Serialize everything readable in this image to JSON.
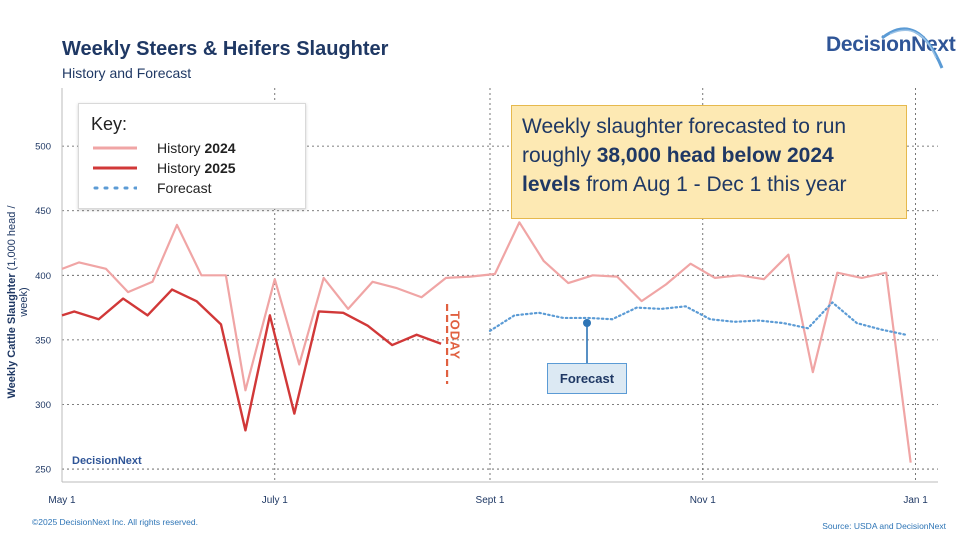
{
  "title": "Weekly Steers & Heifers Slaughter",
  "subtitle": "History and Forecast",
  "logo": "DecisionNext",
  "footer_left": "©2025 DecisionNext Inc. All rights reserved.",
  "footer_right": "Source: USDA and DecisionNext",
  "callout": {
    "text_start": "Weekly slaughter forecasted to run roughly ",
    "text_bold": "38,000 head below 2024 levels",
    "text_end": " from Aug 1 - Dec 1 this year"
  },
  "legend": {
    "title": "Key:",
    "items": [
      {
        "label": "History ",
        "bold": "2024",
        "style": "solid-light"
      },
      {
        "label": "History ",
        "bold": "2025",
        "style": "solid-dark"
      },
      {
        "label": "Forecast",
        "bold": "",
        "style": "dotted"
      }
    ]
  },
  "annotations": {
    "today": "TODAY",
    "forecast_label": "Forecast"
  },
  "colors": {
    "history_2024": "#f0a5a5",
    "history_2025": "#d13838",
    "forecast": "#5b9bd5",
    "today": "#e06040"
  },
  "chart_data": {
    "type": "line",
    "title": "Weekly Steers & Heifers Slaughter",
    "subtitle": "History and Forecast",
    "xlabel": "",
    "ylabel": "Weekly Cattle Slaughter",
    "ylabel_unit": "(1,000 head / week)",
    "ylim": [
      240,
      545
    ],
    "x_domain": [
      0,
      35
    ],
    "x_ticks": [
      {
        "label": "May 1",
        "x": 0
      },
      {
        "label": "July 1",
        "x": 8.7
      },
      {
        "label": "Sept 1",
        "x": 17.5
      },
      {
        "label": "Nov 1",
        "x": 26.2
      },
      {
        "label": "Jan 1",
        "x": 34.9
      }
    ],
    "y_ticks": [
      250,
      300,
      350,
      400,
      450,
      500
    ],
    "today_x": 15.5,
    "series": [
      {
        "name": "History 2024",
        "style": "solid-light",
        "x": [
          0,
          0.7,
          1.8,
          2.7,
          3.7,
          4.7,
          5.7,
          6.7,
          7.5,
          8.7,
          9.7,
          10.7,
          11.7,
          12.7,
          13.7,
          14.7,
          15.7,
          16.7,
          17.7,
          18.7,
          19.7,
          20.7,
          21.7,
          22.7,
          23.7,
          24.7,
          25.7,
          26.7,
          27.7,
          28.7,
          29.7,
          30.7,
          31.7,
          32.7,
          33.7,
          34.7
        ],
        "values": [
          405,
          410,
          405,
          387,
          395,
          439,
          400,
          400,
          311,
          397,
          331,
          398,
          374,
          395,
          390,
          383,
          398,
          399,
          401,
          441,
          411,
          394,
          400,
          399,
          380,
          393,
          409,
          398,
          400,
          397,
          416,
          325,
          402,
          398,
          402,
          255
        ]
      },
      {
        "name": "History 2025",
        "style": "solid-dark",
        "x": [
          0,
          0.5,
          1.5,
          2.5,
          3.5,
          4.5,
          5.5,
          6.5,
          7.5,
          8.5,
          9.5,
          10.5,
          11.5,
          12.5,
          13.5,
          14.5,
          15.5
        ],
        "values": [
          369,
          372,
          366,
          382,
          369,
          389,
          380,
          362,
          280,
          369,
          293,
          372,
          371,
          361,
          346,
          354,
          347
        ]
      },
      {
        "name": "Forecast",
        "style": "dotted",
        "x": [
          17.5,
          18.5,
          19.5,
          20.5,
          21.5,
          22.5,
          23.5,
          24.5,
          25.5,
          26.5,
          27.5,
          28.5,
          29.5,
          30.5,
          31.5,
          32.5,
          33.5,
          34.5
        ],
        "values": [
          357,
          369,
          371,
          367,
          367,
          366,
          375,
          374,
          376,
          366,
          364,
          365,
          363,
          359,
          379,
          363,
          358,
          354
        ]
      }
    ]
  }
}
